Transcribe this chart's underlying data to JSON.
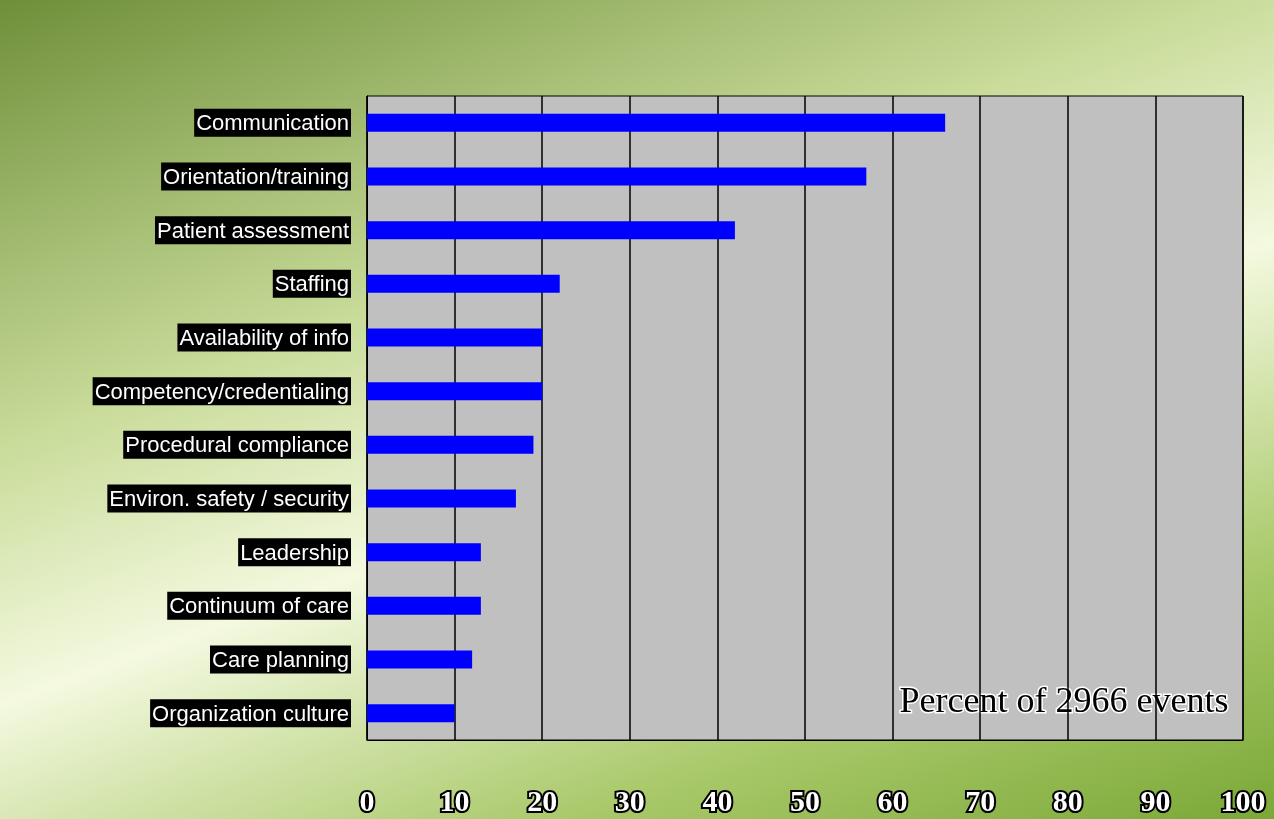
{
  "chart_data": {
    "type": "bar",
    "orientation": "horizontal",
    "categories": [
      "Communication",
      "Orientation/training",
      "Patient assessment",
      "Staffing",
      "Availability of info",
      "Competency/credentialing",
      "Procedural compliance",
      "Environ. safety / security",
      "Leadership",
      "Continuum of care",
      "Care planning",
      "Organization culture"
    ],
    "values": [
      66,
      57,
      42,
      22,
      20,
      20,
      19,
      17,
      13,
      13,
      12,
      10
    ],
    "color": "#0000ff",
    "xlim": [
      0,
      100
    ],
    "xticks": [
      0,
      10,
      20,
      30,
      40,
      50,
      60,
      70,
      80,
      90,
      100
    ],
    "grid": "x",
    "annotations": [
      "Percent of 2966 events"
    ]
  }
}
